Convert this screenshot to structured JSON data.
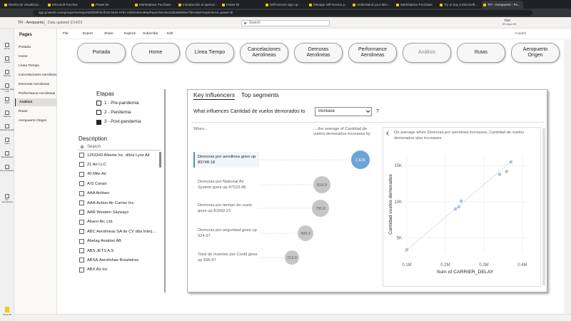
{
  "browser": {
    "tabs": [
      "Diseño de visualizaci...",
      "Microsoft Purview",
      "Power BI",
      "Marketplace Purchase",
      "Introducción al aprend...",
      "Power BI",
      "Self-service sign up...",
      "Manage self-service p...",
      "Understand your Micr...",
      "Marketplace Purchase",
      "Try or buy a Microsoft...",
      "TFI - Aeropuerto - Po..."
    ],
    "active_tab": 11,
    "url": "app.powerbi.com/groups/me/reports/5f26ff45-fb15-4e42-a7b1-e3904461e96a/ReportSection4d2a9b0b9e7fde15a6?experience=power-bi"
  },
  "header": {
    "app": "TFI - Aeropuerto",
    "updated": "Data updated 3/14/23",
    "search": "Search",
    "trial": "Trial",
    "trial_days": "59 days left"
  },
  "toolbar": {
    "items": [
      "File",
      "Export",
      "Share",
      "Explore",
      "Subscribe",
      "Edit"
    ],
    "copilot": "Copilot"
  },
  "nav": [
    "Home",
    "Create",
    "Browse",
    "OneLake data hub",
    "Apps",
    "Metrics",
    "Monitoring hub",
    "Learn",
    "Workspaces",
    "My workspace",
    "TFI - Aeropuerto"
  ],
  "nav_footer": "Power BI",
  "pages": {
    "title": "Pages",
    "items": [
      "Portada",
      "Home",
      "Línea Tiempo",
      "Cancelaciones Aerolineas",
      "Demoras Aerolineas",
      "Performance Aerolineas",
      "Análisis",
      "Rutas",
      "Aeropuerto Origen"
    ],
    "selected": 6
  },
  "buttons": {
    "items": [
      "Portada",
      "Home",
      "Línea Tiempo",
      "Cancelaciones Aerolineas",
      "Demoras Aerolineas",
      "Performance Aerolineas",
      "Análisis",
      "Rutas",
      "Aeropuerto Origen"
    ],
    "current": 6
  },
  "etapas": {
    "title": "Etapas",
    "items": [
      "1 - Pre-pandemia",
      "2 - Pandemia",
      "3 - Post-pandemia"
    ],
    "checked": 2
  },
  "description": {
    "title": "Description",
    "search": "Search",
    "items": [
      "1263343 Alberta Inc. d/b/a Lynx Air",
      "21 Air LLC",
      "40-Mile Air",
      "A/S Conair",
      "AAA Airlines",
      "AAA-Action Air Carrier Inc.",
      "AAR Western Skyways",
      "Abaco Air, Ltd.",
      "ABC Aerolineas SA de CV dba Interj...",
      "Abelag Aviation AB",
      "ABS JETS A.S",
      "ABSA-Aerolinhas Brasileiras",
      "ABX Air Inc"
    ]
  },
  "key_influencers": {
    "tabs": [
      "Key influencers",
      "Top segments"
    ],
    "question": "What influences Cantidad de vuelos demorados to",
    "dropdown": "Increase",
    "help": "?",
    "when": "When...",
    "average": "....the average of Cantidad de vuelos demorados increases by",
    "influencers": [
      {
        "text": "Demoras por aerolinea goes up 89748.18",
        "bubble": "1.62K"
      },
      {
        "text": "Demoras por National Air System goes up 47223.48",
        "bubble": "818.9"
      },
      {
        "text": "Demoras por tiempo de vuelo goes up 81502.21",
        "bubble": "795.8"
      },
      {
        "text": "Demoras por seguridad goes up 524.97",
        "bubble": "499.3"
      },
      {
        "text": "Total de muertes por Covid goes up 596.47",
        "bubble": "219.8"
      }
    ],
    "selected": 0,
    "detail": "On average when Demoras por aerolinea increases, Cantidad de vuelos demorados also increases."
  },
  "chart_data": {
    "type": "scatter",
    "y_label": "Cantidad vuelos demorados",
    "x_label": "Sum of CARRIER_DELAY",
    "xlim": [
      87000,
      415000
    ],
    "ylim": [
      2900,
      16400
    ],
    "xticks": [
      {
        "value": 100000,
        "label": "0.1M"
      },
      {
        "value": 200000,
        "label": "0.2M"
      },
      {
        "value": 300000,
        "label": "0.3M"
      },
      {
        "value": 400000,
        "label": "0.4M"
      }
    ],
    "yticks": [
      {
        "value": 5000,
        "label": "5K"
      },
      {
        "value": 10000,
        "label": "10K"
      },
      {
        "value": 15000,
        "label": "15K"
      }
    ],
    "x": [
      100000,
      226000,
      235000,
      241000,
      341000,
      359000,
      370000
    ],
    "values": [
      3400,
      9000,
      9300,
      10100,
      13800,
      14200,
      15500
    ],
    "color": "#a9c4e0",
    "grid": true
  }
}
